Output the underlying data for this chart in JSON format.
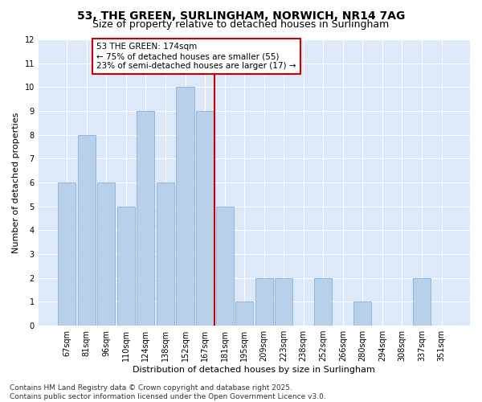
{
  "title_line1": "53, THE GREEN, SURLINGHAM, NORWICH, NR14 7AG",
  "title_line2": "Size of property relative to detached houses in Surlingham",
  "xlabel": "Distribution of detached houses by size in Surlingham",
  "ylabel": "Number of detached properties",
  "fig_background_color": "#ffffff",
  "plot_background_color": "#dde8f8",
  "bar_color": "#b8d0ea",
  "bar_edgecolor": "#8ab0d8",
  "grid_color": "#ffffff",
  "categories": [
    "67sqm",
    "81sqm",
    "96sqm",
    "110sqm",
    "124sqm",
    "138sqm",
    "152sqm",
    "167sqm",
    "181sqm",
    "195sqm",
    "209sqm",
    "223sqm",
    "238sqm",
    "252sqm",
    "266sqm",
    "280sqm",
    "294sqm",
    "308sqm",
    "337sqm",
    "351sqm"
  ],
  "values": [
    6,
    8,
    6,
    5,
    9,
    6,
    10,
    9,
    5,
    1,
    2,
    2,
    0,
    2,
    0,
    1,
    0,
    0,
    2,
    0
  ],
  "ylim": [
    0,
    12
  ],
  "yticks": [
    0,
    1,
    2,
    3,
    4,
    5,
    6,
    7,
    8,
    9,
    10,
    11,
    12
  ],
  "vline_position": 7.5,
  "vline_color": "#cc0000",
  "annotation_text": "53 THE GREEN: 174sqm\n← 75% of detached houses are smaller (55)\n23% of semi-detached houses are larger (17) →",
  "annotation_box_facecolor": "#ffffff",
  "annotation_box_edgecolor": "#cc0000",
  "footer_line1": "Contains HM Land Registry data © Crown copyright and database right 2025.",
  "footer_line2": "Contains public sector information licensed under the Open Government Licence v3.0.",
  "title_fontsize": 10,
  "subtitle_fontsize": 9,
  "axis_label_fontsize": 8,
  "tick_fontsize": 7,
  "annotation_fontsize": 7.5,
  "footer_fontsize": 6.5
}
